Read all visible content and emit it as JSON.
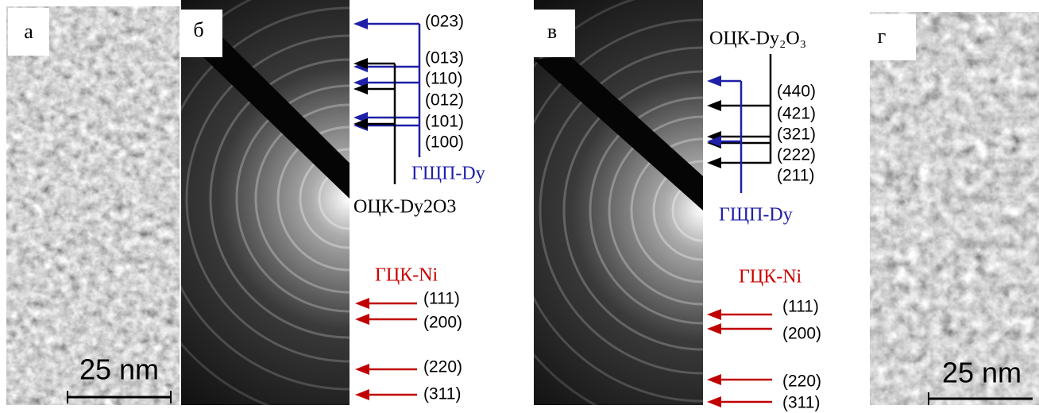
{
  "panels": [
    {
      "label": "а",
      "scale_bar": "25 nm"
    },
    {
      "label": "б",
      "reflections": [
        "(023)",
        "(013)",
        "(110)",
        "(012)",
        "(101)",
        "(100)"
      ],
      "phases": [
        "ГЩП-Dy",
        "ОЦК-Dy2O3"
      ],
      "ni": {
        "phase": "ГЦК-Ni",
        "reflections": [
          "(111)",
          "(200)",
          "(220)",
          "(311)"
        ]
      }
    },
    {
      "label": "в",
      "reflections": [
        "(440)",
        "(421)",
        "(321)",
        "(222)",
        "(211)"
      ],
      "phases": [
        "ОЦК-Dy₂O₃",
        "ГЩП-Dy"
      ],
      "ni": {
        "phase": "ГЦК-Ni",
        "reflections": [
          "(111)",
          "(200)",
          "(220)",
          "(311)"
        ]
      }
    },
    {
      "label": "г",
      "scale_bar": "25 nm"
    }
  ]
}
